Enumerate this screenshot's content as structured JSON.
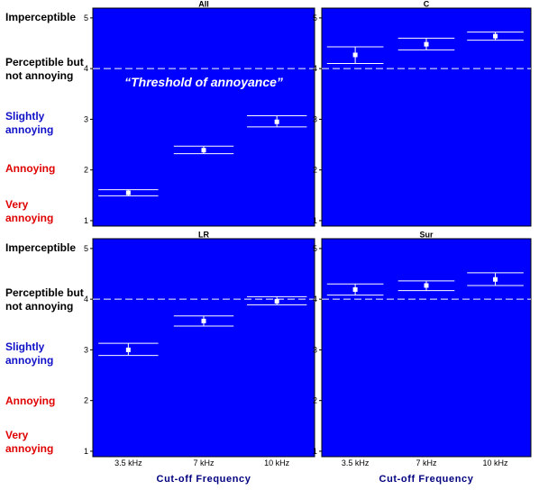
{
  "scale_labels": [
    {
      "text": "Imperceptible",
      "color": "#000000"
    },
    {
      "text": "Perceptible but not annoying",
      "line1": "Perceptible but",
      "line2": "not annoying",
      "color": "#000000"
    },
    {
      "text": "Slightly annoying",
      "line1": "Slightly",
      "line2": "annoying",
      "color": "#1010c8"
    },
    {
      "text": "Annoying",
      "color": "#e00000"
    },
    {
      "text": "Very annoying",
      "line1": "Very",
      "line2": "annoying",
      "color": "#e00000"
    }
  ],
  "colors": {
    "plot_background": "#0000ff",
    "marks": "#ffffff",
    "threshold_line": "#ffffff",
    "axis_title": "#000080"
  },
  "chart_data": [
    {
      "type": "scatter",
      "panel_title": "All",
      "categories": [
        "3.5 kHz",
        "7 kHz",
        "10 kHz"
      ],
      "values": [
        1.55,
        2.39,
        2.95
      ],
      "ci_lower": [
        1.49,
        2.32,
        2.85
      ],
      "ci_upper": [
        1.61,
        2.47,
        3.07
      ],
      "yticks": [
        1,
        2,
        3,
        4,
        5
      ],
      "ylim": [
        1,
        5
      ],
      "threshold": 4,
      "annotation": "“Threshold of annoyance”",
      "xlabel": ""
    },
    {
      "type": "scatter",
      "panel_title": "C",
      "categories": [
        "3.5 kHz",
        "7 kHz",
        "10 kHz"
      ],
      "values": [
        4.27,
        4.48,
        4.64
      ],
      "ci_lower": [
        4.1,
        4.37,
        4.56
      ],
      "ci_upper": [
        4.43,
        4.6,
        4.72
      ],
      "yticks": [
        1,
        2,
        3,
        4,
        5
      ],
      "ylim": [
        1,
        5
      ],
      "threshold": 4,
      "xlabel": ""
    },
    {
      "type": "scatter",
      "panel_title": "LR",
      "categories": [
        "3.5 kHz",
        "7 kHz",
        "10 kHz"
      ],
      "values": [
        3.0,
        3.57,
        3.96
      ],
      "ci_lower": [
        2.89,
        3.47,
        3.89
      ],
      "ci_upper": [
        3.13,
        3.67,
        4.05
      ],
      "yticks": [
        1,
        2,
        3,
        4,
        5
      ],
      "ylim": [
        1,
        5
      ],
      "threshold": 4,
      "xlabel": "Cut-off Frequency"
    },
    {
      "type": "scatter",
      "panel_title": "Sur",
      "categories": [
        "3.5 kHz",
        "7 kHz",
        "10 kHz"
      ],
      "values": [
        4.19,
        4.27,
        4.39
      ],
      "ci_lower": [
        4.08,
        4.17,
        4.27
      ],
      "ci_upper": [
        4.3,
        4.36,
        4.52
      ],
      "yticks": [
        1,
        2,
        3,
        4,
        5
      ],
      "ylim": [
        1,
        5
      ],
      "threshold": 4,
      "xlabel": "Cut-off Frequency"
    }
  ]
}
